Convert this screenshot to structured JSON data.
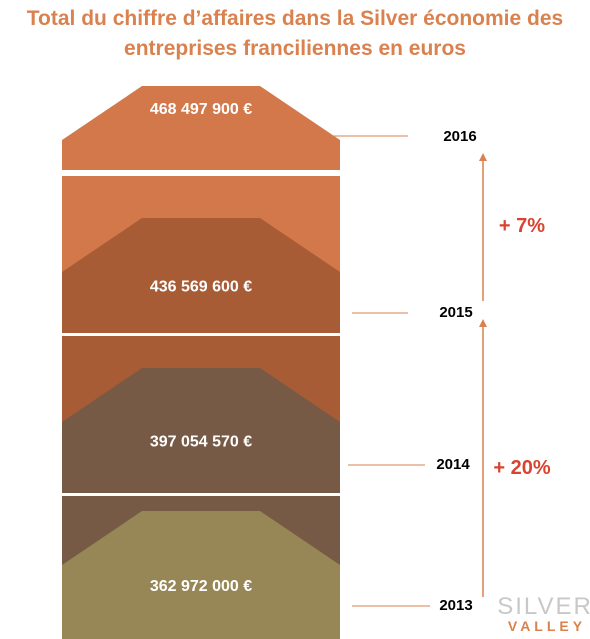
{
  "title_lines": [
    "Total du chiffre d’affaires dans la Silver économie des",
    "entreprises franciliennes en euros"
  ],
  "chart_data": {
    "type": "bar",
    "categories": [
      "2013",
      "2014",
      "2015",
      "2016"
    ],
    "values": [
      362972000,
      397054570,
      436569600,
      468497900
    ],
    "value_labels": [
      "362 972 000 €",
      "397 054 570 €",
      "436 569 600 €",
      "468 497 900 €"
    ],
    "colors": [
      "#978656",
      "#775A45",
      "#A75C36",
      "#D3784A"
    ],
    "growth": [
      {
        "label": "+ 20%",
        "from": "2013",
        "to": "2015"
      },
      {
        "label": "+ 7%",
        "from": "2015",
        "to": "2016"
      }
    ],
    "arrow_color": "#D9824F"
  },
  "logo": {
    "top": "SILVER",
    "bottom": "VALLEY"
  }
}
